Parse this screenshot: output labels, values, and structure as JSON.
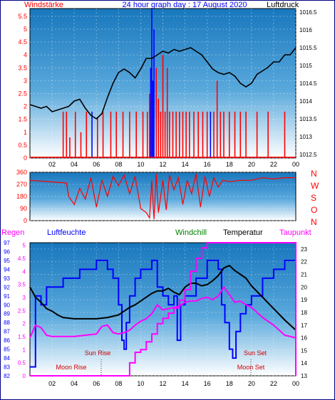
{
  "colors": {
    "wind": "#ff0000",
    "pressure": "#000000",
    "gust_blue": "#0000ff",
    "humidity": "#0000ff",
    "temperature": "#000000",
    "dewpoint": "#ff00ff",
    "windchill": "#008000",
    "sun_label": "#cc0000",
    "sky_top": "#1e7fc4",
    "sky_bottom": "#ffffff"
  },
  "chart_data": [
    {
      "type": "line",
      "title": "24 hour graph day : 17 August 2020",
      "left_label": "Windstärke",
      "right_label": "Luftdruck",
      "x_ticks": [
        "02",
        "04",
        "06",
        "08",
        "10",
        "12",
        "14",
        "16",
        "18",
        "20",
        "22",
        "00"
      ],
      "y_left_ticks": [
        "0",
        "0.5",
        "1",
        "1.5",
        "2",
        "2.5",
        "3",
        "3.5",
        "4",
        "4.5",
        "5",
        "5.5"
      ],
      "y_right_ticks": [
        "1012.5",
        "1013",
        "1013.5",
        "1014",
        "1014.5",
        "1015",
        "1015.5",
        "1016",
        "1016.5"
      ],
      "ylim_left": [
        0,
        5.8
      ],
      "ylim_right": [
        1012.4,
        1016.6
      ],
      "series": [
        {
          "axis": "right",
          "x": [
            0,
            0.5,
            1,
            1.5,
            2,
            2.5,
            3,
            3.5,
            4,
            4.5,
            5,
            5.5,
            6,
            6.5,
            7,
            7.5,
            8,
            8.5,
            9,
            9.5,
            10,
            10.5,
            11,
            11.5,
            12,
            12.5,
            13,
            13.5,
            14,
            14.5,
            15,
            15.5,
            16,
            16.5,
            17,
            17.5,
            18,
            18.5,
            19,
            19.5,
            20,
            20.5,
            21,
            21.5,
            22,
            22.5,
            23,
            23.5,
            24
          ],
          "values": [
            1013.9,
            1013.85,
            1013.8,
            1013.85,
            1013.7,
            1013.75,
            1013.8,
            1013.85,
            1014.0,
            1014.05,
            1013.8,
            1013.6,
            1013.5,
            1013.65,
            1014.1,
            1014.5,
            1014.8,
            1014.9,
            1014.8,
            1014.65,
            1014.9,
            1015.2,
            1015.2,
            1015.3,
            1015.4,
            1015.35,
            1015.45,
            1015.4,
            1015.45,
            1015.5,
            1015.4,
            1015.3,
            1015.1,
            1014.9,
            1014.8,
            1014.75,
            1014.8,
            1014.7,
            1014.5,
            1014.4,
            1014.5,
            1014.75,
            1014.85,
            1014.95,
            1015.1,
            1015.1,
            1015.3,
            1015.3,
            1015.5
          ]
        },
        {
          "axis": "left",
          "x": [
            3.0,
            3.3,
            3.6,
            4.1,
            4.6,
            5.1,
            5.6,
            6.1,
            6.6,
            7.3,
            7.8,
            8.4,
            9.0,
            9.6,
            10.2,
            10.6,
            10.8,
            10.9,
            11.0,
            11.1,
            11.2,
            11.4,
            11.6,
            11.8,
            12.0,
            12.2,
            12.4,
            12.6,
            12.9,
            13.2,
            13.5,
            13.8,
            14.1,
            14.4,
            14.8,
            15.2,
            15.6,
            16.0,
            16.3,
            16.6,
            16.9,
            17.2,
            17.5,
            18.0,
            18.5,
            19.0,
            19.5,
            20.5,
            21.5,
            23.0
          ],
          "values": [
            1.8,
            1.8,
            0.8,
            1.8,
            1.0,
            1.8,
            1.8,
            1.6,
            1.8,
            1.8,
            1.8,
            1.8,
            1.8,
            1.8,
            1.8,
            1.8,
            2.5,
            3.5,
            5.8,
            3.0,
            5.0,
            3.5,
            2.3,
            1.8,
            4.0,
            1.8,
            3.5,
            1.8,
            1.8,
            1.8,
            1.8,
            1.8,
            1.8,
            1.8,
            1.8,
            1.8,
            1.8,
            1.8,
            1.8,
            1.8,
            3.0,
            1.8,
            1.8,
            1.8,
            1.8,
            1.8,
            1.8,
            1.8,
            1.8,
            1.8
          ]
        }
      ]
    },
    {
      "type": "line",
      "title": "",
      "y_left_ticks": [
        "0",
        "90",
        "180",
        "270",
        "360"
      ],
      "direction_labels": [
        "N",
        "W",
        "S",
        "O",
        "N"
      ],
      "ylim": [
        0,
        360
      ],
      "series": [
        {
          "x": [
            0,
            3.3,
            3.5,
            4,
            4.5,
            5,
            5.5,
            6,
            6.5,
            7,
            7.5,
            8,
            8.5,
            9,
            9.5,
            10,
            10.5,
            10.8,
            11,
            11.2,
            11.4,
            11.6,
            11.8,
            12,
            12.3,
            12.6,
            13,
            13.4,
            13.8,
            14.2,
            14.6,
            15,
            15.4,
            15.8,
            16.2,
            16.6,
            17,
            17.4,
            18,
            19,
            20,
            21,
            22,
            23,
            24
          ],
          "values": [
            300,
            280,
            180,
            120,
            240,
            160,
            320,
            100,
            300,
            180,
            330,
            260,
            340,
            200,
            330,
            90,
            60,
            20,
            300,
            10,
            350,
            60,
            180,
            300,
            80,
            340,
            230,
            320,
            120,
            300,
            200,
            350,
            100,
            330,
            180,
            320,
            250,
            300,
            290,
            300,
            300,
            320,
            310,
            320,
            320
          ]
        }
      ]
    },
    {
      "type": "line",
      "title": "",
      "labels": {
        "rain": "Regen",
        "humidity": "Luftfeuchte",
        "windchill": "Windchill",
        "temperature": "Temperatur",
        "dewpoint": "Taupunkt"
      },
      "x_ticks": [
        "02",
        "04",
        "06",
        "08",
        "10",
        "12",
        "14",
        "16",
        "18",
        "20",
        "22",
        "00"
      ],
      "rain_ticks": [
        "0",
        "0.5",
        "1",
        "1.5",
        "2",
        "2.5",
        "3",
        "3.5",
        "4",
        "4.5",
        "5"
      ],
      "humidity_ticks": [
        "82",
        "83",
        "84",
        "85",
        "86",
        "87",
        "88",
        "89",
        "90",
        "91",
        "92",
        "93",
        "94",
        "95",
        "96",
        "97"
      ],
      "temperature_ticks": [
        "13",
        "14",
        "15",
        "16",
        "17",
        "18",
        "19",
        "20",
        "21",
        "22",
        "23"
      ],
      "annotations": [
        "Sun Rise",
        "Moon Rise",
        "Sun Set",
        "Moon Set"
      ],
      "ylim_temperature": [
        13,
        23.5
      ],
      "ylim_humidity": [
        82,
        97
      ],
      "ylim_rain": [
        0,
        5.1
      ],
      "series": [
        {
          "name": "Luftfeuchte",
          "axis": "humidity",
          "x": [
            0,
            0.5,
            1,
            1.5,
            2,
            3,
            4,
            4.5,
            5,
            6,
            6.5,
            7,
            7.5,
            8,
            8.3,
            8.5,
            8.7,
            9,
            9.5,
            10,
            10.5,
            11,
            11.5,
            12,
            12.5,
            13,
            13.3,
            13.6,
            14,
            14.5,
            15,
            16,
            16.5,
            17,
            17.3,
            17.6,
            18,
            18.3,
            18.6,
            19,
            19.5,
            20,
            21,
            22,
            23,
            24
          ],
          "values": [
            83,
            91,
            90,
            92,
            92,
            93,
            93,
            94,
            94,
            95,
            95,
            94,
            93,
            90,
            86,
            85,
            88,
            91,
            93,
            94,
            94,
            95,
            92,
            91,
            90,
            91,
            86,
            90,
            91,
            91,
            93,
            95,
            95,
            94,
            90,
            88,
            85,
            84,
            87,
            89,
            90,
            91,
            93,
            94,
            95,
            96
          ]
        },
        {
          "name": "Temperatur",
          "axis": "temperature",
          "x": [
            0,
            0.5,
            1,
            1.5,
            2,
            2.5,
            3,
            4,
            5,
            6,
            7,
            8,
            8.5,
            9,
            9.5,
            10,
            10.5,
            11,
            11.5,
            12,
            12.5,
            13,
            13.5,
            14,
            14.5,
            15,
            15.5,
            16,
            16.5,
            17,
            17.5,
            18,
            18.5,
            19,
            19.5,
            20,
            21,
            22,
            23,
            24
          ],
          "values": [
            20.0,
            19.2,
            18.8,
            18.3,
            18.1,
            17.8,
            17.6,
            17.5,
            17.5,
            17.5,
            17.6,
            17.8,
            18.1,
            18.4,
            18.6,
            18.9,
            19.2,
            19.5,
            19.7,
            19.7,
            19.9,
            19.6,
            19.4,
            20.0,
            20.3,
            20.3,
            20.1,
            20.2,
            20.5,
            20.9,
            21.5,
            21.7,
            21.3,
            21.0,
            20.7,
            20.1,
            19.2,
            18.3,
            17.4,
            16.6
          ]
        },
        {
          "name": "Taupunkt",
          "axis": "temperature",
          "x": [
            0,
            0.5,
            1,
            1.5,
            2,
            3,
            4,
            5,
            6,
            6.5,
            7,
            7.5,
            8,
            8.5,
            9,
            9.5,
            10,
            10.5,
            11,
            11.5,
            12,
            12.5,
            13,
            13.5,
            14,
            14.5,
            15,
            15.5,
            16,
            16.5,
            17,
            17.5,
            18,
            18.5,
            19,
            19.5,
            20,
            21,
            22,
            23,
            24
          ],
          "values": [
            16.0,
            17.0,
            16.8,
            16.2,
            16.1,
            16.1,
            16.1,
            16.2,
            16.3,
            16.9,
            17.0,
            16.4,
            16.3,
            16.4,
            16.6,
            17.0,
            17.3,
            17.5,
            17.9,
            18.6,
            18.2,
            18.3,
            18.4,
            18.5,
            18.8,
            18.9,
            18.9,
            19.1,
            19.2,
            19.0,
            19.3,
            20.0,
            19.4,
            18.8,
            18.9,
            18.6,
            18.4,
            17.6,
            17.0,
            16.2,
            16.0
          ]
        },
        {
          "name": "Regen",
          "axis": "rain",
          "x": [
            0,
            8.8,
            9.0,
            9.5,
            10,
            10.5,
            11,
            11.5,
            12,
            12.5,
            13,
            13.5,
            14,
            14.5,
            15,
            15.5,
            16,
            16.5,
            17,
            18,
            20,
            22,
            23.7,
            24
          ],
          "values": [
            0,
            0,
            0.5,
            0.9,
            1.0,
            1.3,
            1.6,
            2.0,
            2.2,
            2.4,
            2.6,
            2.9,
            3.3,
            4.0,
            4.5,
            4.9,
            5.1,
            5.1,
            5.1,
            5.1,
            5.1,
            5.1,
            5.1,
            0
          ]
        }
      ]
    }
  ]
}
